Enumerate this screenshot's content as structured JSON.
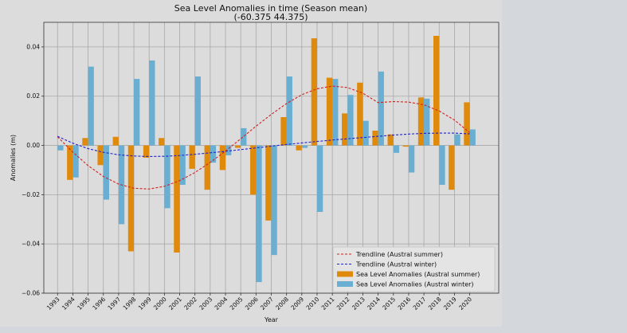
{
  "chart_data": {
    "type": "bar",
    "title": "Sea Level Anomalies in time (Season mean)",
    "subtitle": "(-60.375 44.375)",
    "xlabel": "Year",
    "ylabel": "Anomalies (m)",
    "ylim": [
      -0.06,
      0.05
    ],
    "yticks": [
      -0.06,
      -0.04,
      -0.02,
      0.0,
      0.02,
      0.04
    ],
    "ytick_labels": [
      "−0.06",
      "−0.04",
      "−0.02",
      "0.00",
      "0.02",
      "0.04"
    ],
    "grid": true,
    "legend_position": "lower-right",
    "categories": [
      "1993",
      "1994",
      "1995",
      "1996",
      "1997",
      "1998",
      "1999",
      "2000",
      "2001",
      "2002",
      "2003",
      "2004",
      "2005",
      "2006",
      "2007",
      "2008",
      "2009",
      "2010",
      "2011",
      "2012",
      "2013",
      "2014",
      "2015",
      "2016",
      "2017",
      "2018",
      "2019",
      "2020"
    ],
    "series": [
      {
        "name": "Sea Level Anomalies (Austral summer)",
        "kind": "bar",
        "color": "#e08a0c",
        "values": [
          null,
          -0.014,
          0.003,
          -0.008,
          0.0035,
          -0.043,
          -0.005,
          0.003,
          -0.0435,
          -0.0095,
          -0.018,
          -0.01,
          -0.001,
          -0.02,
          -0.0305,
          0.0115,
          -0.002,
          0.0435,
          0.0275,
          0.013,
          0.0255,
          0.006,
          0.0045,
          -0.0005,
          0.0195,
          0.0445,
          -0.018,
          0.0175
        ]
      },
      {
        "name": "Sea Level Anomalies (Austral winter)",
        "kind": "bar",
        "color": "#6aaed1",
        "values": [
          -0.002,
          -0.013,
          0.032,
          -0.022,
          -0.032,
          0.027,
          0.0345,
          -0.0255,
          -0.016,
          0.028,
          -0.007,
          -0.004,
          0.007,
          -0.0555,
          -0.0445,
          0.028,
          -0.001,
          -0.027,
          0.027,
          0.0205,
          0.01,
          0.03,
          -0.003,
          -0.011,
          0.019,
          -0.016,
          0.0045,
          0.0065
        ]
      },
      {
        "name": "Trendline (Austral summer)",
        "kind": "line",
        "style": "dashed",
        "color": "#d42020",
        "values": [
          0.0035,
          -0.0027,
          -0.0082,
          -0.0126,
          -0.0157,
          -0.0174,
          -0.0177,
          -0.0166,
          -0.0143,
          -0.011,
          -0.0069,
          -0.0023,
          0.0027,
          0.0078,
          0.0126,
          0.017,
          0.0206,
          0.023,
          0.0241,
          0.0235,
          0.0212,
          0.0174,
          0.0178,
          0.0176,
          0.0165,
          0.014,
          0.0103,
          0.0052
        ]
      },
      {
        "name": "Trendline (Austral winter)",
        "kind": "line",
        "style": "dashed",
        "color": "#2020d4",
        "values": [
          0.0037,
          0.0009,
          -0.0013,
          -0.0028,
          -0.0038,
          -0.0043,
          -0.0045,
          -0.0044,
          -0.0041,
          -0.0036,
          -0.003,
          -0.0024,
          -0.0017,
          -0.001,
          -0.0003,
          0.0004,
          0.001,
          0.0016,
          0.0022,
          0.0027,
          0.0032,
          0.0037,
          0.0042,
          0.0046,
          0.0049,
          0.005,
          0.005,
          0.0047
        ]
      }
    ],
    "legend": [
      {
        "label": "Trendline (Austral summer)",
        "kind": "line",
        "color": "#d42020"
      },
      {
        "label": "Trendline (Austral winter)",
        "kind": "line",
        "color": "#2020d4"
      },
      {
        "label": "Sea Level Anomalies (Austral summer)",
        "kind": "bar",
        "color": "#e08a0c"
      },
      {
        "label": "Sea Level Anomalies (Austral winter)",
        "kind": "bar",
        "color": "#6aaed1"
      }
    ]
  }
}
